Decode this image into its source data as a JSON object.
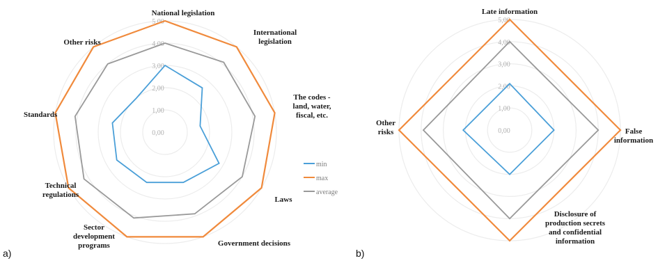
{
  "chart_data": [
    {
      "type": "radar",
      "panel_label": "a)",
      "categories": [
        [
          "National legislation"
        ],
        [
          "International",
          "legislation"
        ],
        [
          "The codes -",
          "land, water,",
          "fiscal, etc."
        ],
        [
          "Laws"
        ],
        [
          "Government decisions"
        ],
        [
          "Sector",
          "development",
          "programs"
        ],
        [
          "Technical",
          "regulations"
        ],
        [
          "Standards"
        ],
        [
          "Other risks"
        ]
      ],
      "rlim": [
        0,
        5
      ],
      "ticks": [
        "0,00",
        "1,00",
        "2,00",
        "3,00",
        "4,00",
        "5,00"
      ],
      "series": [
        {
          "name": "min",
          "color": "#4a9fd8",
          "values": [
            3.0,
            2.6,
            1.6,
            2.8,
            2.4,
            2.4,
            2.5,
            2.4,
            2.0
          ]
        },
        {
          "name": "max",
          "color": "#f08a3c",
          "values": [
            5,
            5,
            5,
            5,
            5,
            5,
            5,
            5,
            5
          ]
        },
        {
          "name": "average",
          "color": "#999999",
          "values": [
            4.0,
            4.1,
            4.1,
            4.0,
            3.9,
            4.1,
            4.2,
            4.1,
            4.0
          ]
        }
      ],
      "legend_position": "right"
    },
    {
      "type": "radar",
      "panel_label": "b)",
      "categories": [
        [
          "Late information"
        ],
        [
          "False",
          "information"
        ],
        [
          "Disclosure of",
          "production secrets",
          "and confidential",
          "information"
        ],
        [
          "Other",
          "risks"
        ]
      ],
      "rlim": [
        0,
        5
      ],
      "ticks": [
        "0,00",
        "1,00",
        "2,00",
        "3,00",
        "4,00",
        "5,00"
      ],
      "series": [
        {
          "name": "min",
          "color": "#4a9fd8",
          "values": [
            2.1,
            2.0,
            2.0,
            2.1
          ]
        },
        {
          "name": "max",
          "color": "#f08a3c",
          "values": [
            5,
            5,
            5,
            5
          ]
        },
        {
          "name": "average",
          "color": "#999999",
          "values": [
            4.0,
            4.0,
            4.0,
            3.9
          ]
        }
      ]
    }
  ]
}
